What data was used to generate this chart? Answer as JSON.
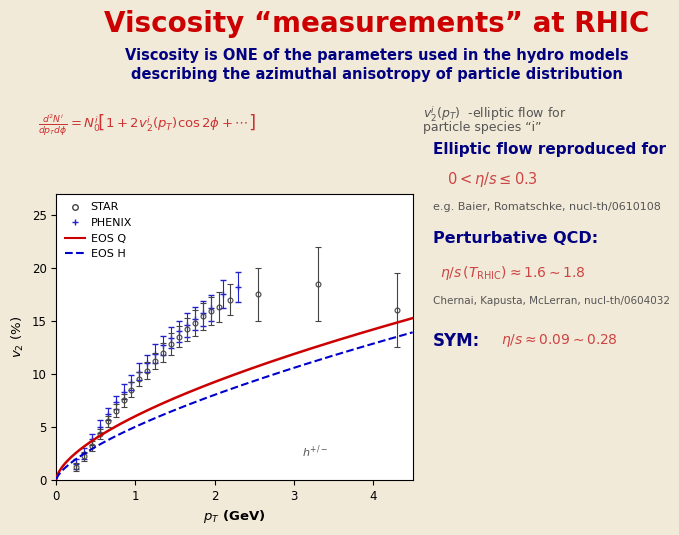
{
  "title": "Viscosity “measurements” at RHIC",
  "title_color": "#cc0000",
  "bg_color": "#f2ead8",
  "subtitle1": "Viscosity is ONE of the parameters used in the hydro models",
  "subtitle2": "describing the azimuthal anisotropy of particle distribution",
  "subtitle_color": "#000080",
  "formula_color": "#cc3333",
  "v2_label_line1": "$v_2^i(p_T)$  -elliptic flow for",
  "v2_label_line2": "particle species “i”",
  "v2_label_color": "#555555",
  "elliptic_flow_text": "Elliptic flow reproduced for",
  "elliptic_flow_color": "#000080",
  "eta_s_range": "$0 < \\eta/s \\leq 0.3$",
  "eta_s_color": "#cc4444",
  "reference1": "e.g. Baier, Romatschke, nucl-th/0610108",
  "reference1_color": "#555555",
  "perturbative_qcd": "Perturbative QCD:",
  "perturbative_qcd_color": "#000080",
  "pqcd_formula": "$\\eta/s\\,(T_{\\mathrm{RHIC}}) \\approx 1.6 \\sim 1.8$",
  "pqcd_formula_color": "#cc4444",
  "reference2": "Chernai, Kapusta, McLerran, nucl-th/0604032",
  "reference2_color": "#555555",
  "sym_label": "SYM:",
  "sym_label_color": "#000080",
  "sym_formula": "$\\eta/s \\approx 0.09 \\sim 0.28$",
  "sym_formula_color": "#cc4444",
  "plot_bg": "#ffffff",
  "plot_xlabel": "$p_T$ (GeV)",
  "plot_ylabel": "$v_2$ (%)",
  "plot_xlim": [
    0,
    4.5
  ],
  "plot_ylim": [
    0,
    27
  ],
  "eos_q_color": "#cc0000",
  "eos_h_color": "#0000cc",
  "star_color": "#444444",
  "phenix_color": "#2222cc"
}
